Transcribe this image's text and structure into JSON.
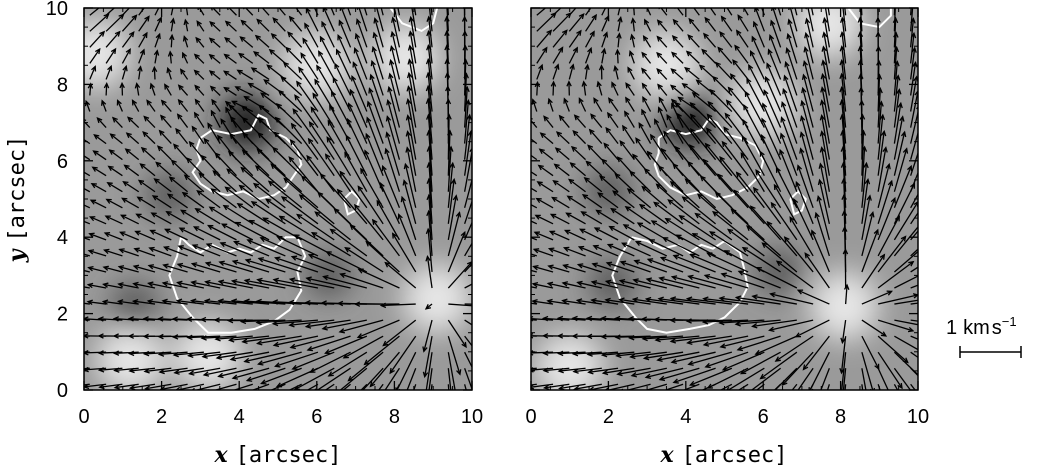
{
  "figure": {
    "panels": [
      {
        "id": "left",
        "x_var": "x",
        "x_unit": "[arcsec]",
        "y_var": "y",
        "y_unit": "[arcsec]"
      },
      {
        "id": "right",
        "x_var": "x",
        "x_unit": "[arcsec]"
      }
    ],
    "scale_bar": {
      "label_value": "1",
      "label_unit": "km",
      "label_unit2": "s",
      "label_exp": "−1"
    }
  },
  "chart_data": [
    {
      "type": "heatmap",
      "title": "",
      "xlabel": "x [arcsec]",
      "ylabel": "y [arcsec]",
      "xlim": [
        0,
        10
      ],
      "ylim": [
        0,
        10
      ],
      "xticks": [
        0,
        2,
        4,
        6,
        8,
        10
      ],
      "yticks": [
        0,
        2,
        4,
        6,
        8,
        10
      ],
      "grid": false,
      "overlay": "velocity vectors (horizontal flow arrows) with white contours",
      "features": {
        "dark_spots": [
          [
            4.2,
            7.0
          ],
          [
            2.2,
            5.1
          ],
          [
            1.3,
            2.2
          ],
          [
            6.3,
            3.0
          ]
        ],
        "bright_spots": [
          [
            0.3,
            8.8
          ],
          [
            9.1,
            2.4
          ],
          [
            8.3,
            8.7
          ],
          [
            1.2,
            0.8
          ],
          [
            3.2,
            0.9
          ],
          [
            6.0,
            8.5
          ]
        ],
        "divergence_centers": [
          [
            9.0,
            2.3
          ]
        ],
        "convergence_centers": [
          [
            4.2,
            7.0
          ]
        ],
        "strong_flow_region": "upper-left corner and lower-right quadrant",
        "contours": [
          [
            [
              3.0,
              6.6
            ],
            [
              3.3,
              6.8
            ],
            [
              3.8,
              6.7
            ],
            [
              4.3,
              6.8
            ],
            [
              4.5,
              7.2
            ],
            [
              4.7,
              7.1
            ],
            [
              4.8,
              6.8
            ],
            [
              5.2,
              6.6
            ],
            [
              5.5,
              6.3
            ],
            [
              5.6,
              5.9
            ],
            [
              5.4,
              5.6
            ],
            [
              5.2,
              5.3
            ],
            [
              4.9,
              5.1
            ],
            [
              4.5,
              5.0
            ],
            [
              4.1,
              5.2
            ],
            [
              3.7,
              5.1
            ],
            [
              3.3,
              5.2
            ],
            [
              3.0,
              5.4
            ],
            [
              2.8,
              5.7
            ],
            [
              3.0,
              6.0
            ],
            [
              2.9,
              6.3
            ],
            [
              3.0,
              6.6
            ]
          ],
          [
            [
              2.5,
              4.0
            ],
            [
              2.4,
              3.5
            ],
            [
              2.2,
              3.0
            ],
            [
              2.4,
              2.4
            ],
            [
              2.8,
              1.9
            ],
            [
              3.2,
              1.5
            ],
            [
              3.8,
              1.5
            ],
            [
              4.4,
              1.6
            ],
            [
              4.9,
              1.8
            ],
            [
              5.3,
              2.1
            ],
            [
              5.6,
              2.6
            ],
            [
              5.5,
              3.1
            ],
            [
              5.7,
              3.5
            ],
            [
              5.5,
              4.0
            ],
            [
              5.2,
              4.0
            ],
            [
              4.9,
              3.7
            ],
            [
              4.6,
              3.8
            ],
            [
              4.3,
              3.6
            ],
            [
              4.0,
              3.7
            ],
            [
              3.7,
              3.6
            ],
            [
              3.3,
              3.8
            ],
            [
              3.0,
              3.6
            ],
            [
              2.7,
              3.8
            ],
            [
              2.5,
              4.0
            ]
          ],
          [
            [
              6.7,
              5.0
            ],
            [
              6.9,
              5.2
            ],
            [
              7.1,
              5.0
            ],
            [
              7.0,
              4.7
            ],
            [
              6.8,
              4.6
            ],
            [
              6.7,
              5.0
            ]
          ],
          [
            [
              7.9,
              10.0
            ],
            [
              8.2,
              9.6
            ],
            [
              8.7,
              9.4
            ],
            [
              9.0,
              9.6
            ],
            [
              9.1,
              10.0
            ]
          ]
        ]
      }
    },
    {
      "type": "heatmap",
      "title": "",
      "xlabel": "x [arcsec]",
      "ylabel": "",
      "xlim": [
        0,
        10
      ],
      "ylim": [
        0,
        10
      ],
      "xticks": [
        0,
        2,
        4,
        6,
        8,
        10
      ],
      "yticks": [
        0,
        2,
        4,
        6,
        8,
        10
      ],
      "grid": false,
      "overlay": "velocity vectors (horizontal flow arrows) with white contours",
      "features": {
        "dark_spots": [
          [
            4.1,
            7.1
          ],
          [
            2.0,
            5.2
          ],
          [
            6.4,
            3.1
          ],
          [
            2.1,
            2.8
          ]
        ],
        "bright_spots": [
          [
            8.1,
            2.2
          ],
          [
            7.7,
            9.6
          ],
          [
            1.0,
            0.6
          ],
          [
            3.5,
            8.5
          ],
          [
            6.0,
            7.5
          ]
        ],
        "divergence_centers": [
          [
            8.1,
            2.1
          ]
        ],
        "convergence_centers": [
          [
            4.1,
            7.0
          ]
        ],
        "strong_flow_region": "upper-left corner and lower-right quadrant",
        "contours": [
          [
            [
              3.3,
              6.6
            ],
            [
              3.6,
              6.8
            ],
            [
              4.0,
              6.7
            ],
            [
              4.4,
              6.8
            ],
            [
              4.6,
              7.1
            ],
            [
              4.8,
              7.0
            ],
            [
              5.0,
              6.7
            ],
            [
              5.4,
              6.6
            ],
            [
              5.8,
              6.4
            ],
            [
              6.0,
              6.0
            ],
            [
              5.9,
              5.6
            ],
            [
              5.6,
              5.3
            ],
            [
              5.2,
              5.1
            ],
            [
              4.8,
              5.0
            ],
            [
              4.4,
              5.2
            ],
            [
              4.0,
              5.1
            ],
            [
              3.6,
              5.3
            ],
            [
              3.3,
              5.6
            ],
            [
              3.2,
              5.9
            ],
            [
              3.3,
              6.2
            ],
            [
              3.3,
              6.6
            ]
          ],
          [
            [
              2.6,
              4.0
            ],
            [
              2.3,
              3.5
            ],
            [
              2.1,
              3.0
            ],
            [
              2.3,
              2.4
            ],
            [
              2.7,
              1.9
            ],
            [
              3.0,
              1.6
            ],
            [
              3.5,
              1.5
            ],
            [
              4.1,
              1.6
            ],
            [
              4.6,
              1.7
            ],
            [
              5.0,
              1.9
            ],
            [
              5.4,
              2.3
            ],
            [
              5.6,
              2.7
            ],
            [
              5.5,
              3.2
            ],
            [
              5.4,
              3.6
            ],
            [
              5.0,
              3.9
            ],
            [
              4.7,
              3.7
            ],
            [
              4.4,
              3.8
            ],
            [
              4.1,
              3.6
            ],
            [
              3.8,
              3.8
            ],
            [
              3.4,
              3.7
            ],
            [
              3.0,
              3.9
            ],
            [
              2.6,
              4.0
            ]
          ],
          [
            [
              6.7,
              5.0
            ],
            [
              6.9,
              5.2
            ],
            [
              7.1,
              5.0
            ],
            [
              7.0,
              4.7
            ],
            [
              6.8,
              4.6
            ],
            [
              6.7,
              5.0
            ]
          ],
          [
            [
              8.2,
              10.0
            ],
            [
              8.5,
              9.6
            ],
            [
              9.0,
              9.5
            ],
            [
              9.3,
              9.8
            ],
            [
              9.3,
              10.0
            ]
          ]
        ]
      }
    }
  ]
}
